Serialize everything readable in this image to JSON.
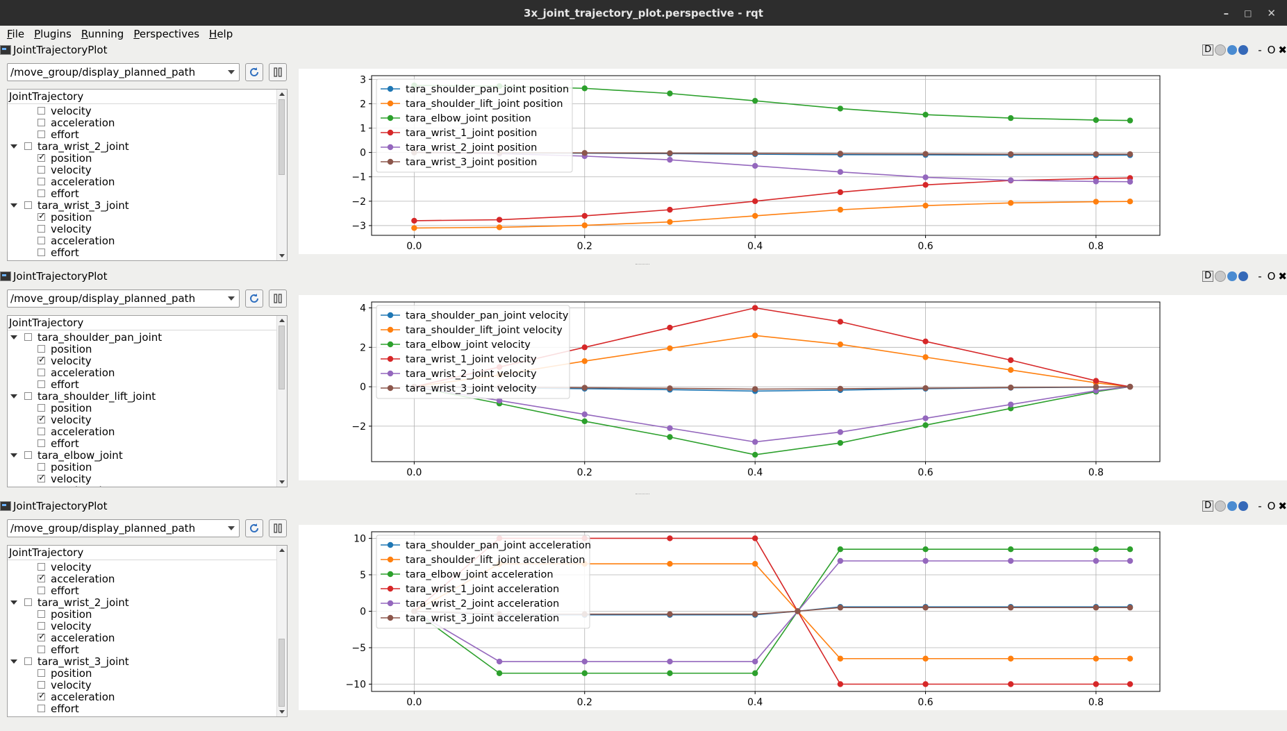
{
  "window": {
    "title": "3x_joint_trajectory_plot.perspective - rqt",
    "controls": [
      "–",
      "□",
      "✕"
    ]
  },
  "menu": [
    "File",
    "Plugins",
    "Running",
    "Perspectives",
    "Help"
  ],
  "dock_controls": {
    "d": "D",
    "minimize": "-",
    "float": "O",
    "close": "✖"
  },
  "colors": {
    "shoulder_pan": "#1f77b4",
    "shoulder_lift": "#ff7f0e",
    "elbow": "#2ca02c",
    "wrist_1": "#d62728",
    "wrist_2": "#9467bd",
    "wrist_3": "#8c564b"
  },
  "panels": [
    {
      "title": "JointTrajectoryPlot",
      "topic": "/move_group/display_planned_path",
      "tree_header": "JointTrajectory",
      "tree_rows": [
        {
          "label": "velocity",
          "type": "child",
          "checked": false
        },
        {
          "label": "acceleration",
          "type": "child",
          "checked": false
        },
        {
          "label": "effort",
          "type": "child",
          "checked": false
        },
        {
          "label": "tara_wrist_2_joint",
          "type": "parent",
          "checked": false
        },
        {
          "label": "position",
          "type": "child",
          "checked": true
        },
        {
          "label": "velocity",
          "type": "child",
          "checked": false
        },
        {
          "label": "acceleration",
          "type": "child",
          "checked": false
        },
        {
          "label": "effort",
          "type": "child",
          "checked": false
        },
        {
          "label": "tara_wrist_3_joint",
          "type": "parent",
          "checked": false
        },
        {
          "label": "position",
          "type": "child",
          "checked": true
        },
        {
          "label": "velocity",
          "type": "child",
          "checked": false
        },
        {
          "label": "acceleration",
          "type": "child",
          "checked": false
        },
        {
          "label": "effort",
          "type": "child",
          "checked": false
        }
      ],
      "scroll_thumb": [
        0.0,
        0.5
      ]
    },
    {
      "title": "JointTrajectoryPlot",
      "topic": "/move_group/display_planned_path",
      "tree_header": "JointTrajectory",
      "tree_rows": [
        {
          "label": "tara_shoulder_pan_joint",
          "type": "parent",
          "checked": false
        },
        {
          "label": "position",
          "type": "child",
          "checked": false
        },
        {
          "label": "velocity",
          "type": "child",
          "checked": true
        },
        {
          "label": "acceleration",
          "type": "child",
          "checked": false
        },
        {
          "label": "effort",
          "type": "child",
          "checked": false
        },
        {
          "label": "tara_shoulder_lift_joint",
          "type": "parent",
          "checked": false
        },
        {
          "label": "position",
          "type": "child",
          "checked": false
        },
        {
          "label": "velocity",
          "type": "child",
          "checked": true
        },
        {
          "label": "acceleration",
          "type": "child",
          "checked": false
        },
        {
          "label": "effort",
          "type": "child",
          "checked": false
        },
        {
          "label": "tara_elbow_joint",
          "type": "parent",
          "checked": false
        },
        {
          "label": "position",
          "type": "child",
          "checked": false
        },
        {
          "label": "velocity",
          "type": "child",
          "checked": true
        },
        {
          "label": "acceleration",
          "type": "child",
          "checked": false
        }
      ],
      "scroll_thumb": [
        0.0,
        0.42
      ]
    },
    {
      "title": "JointTrajectoryPlot",
      "topic": "/move_group/display_planned_path",
      "tree_header": "JointTrajectory",
      "tree_rows": [
        {
          "label": "velocity",
          "type": "child",
          "checked": false
        },
        {
          "label": "acceleration",
          "type": "child",
          "checked": true
        },
        {
          "label": "effort",
          "type": "child",
          "checked": false
        },
        {
          "label": "tara_wrist_2_joint",
          "type": "parent",
          "checked": false
        },
        {
          "label": "position",
          "type": "child",
          "checked": false
        },
        {
          "label": "velocity",
          "type": "child",
          "checked": false
        },
        {
          "label": "acceleration",
          "type": "child",
          "checked": true
        },
        {
          "label": "effort",
          "type": "child",
          "checked": false
        },
        {
          "label": "tara_wrist_3_joint",
          "type": "parent",
          "checked": false
        },
        {
          "label": "position",
          "type": "child",
          "checked": false
        },
        {
          "label": "velocity",
          "type": "child",
          "checked": false
        },
        {
          "label": "acceleration",
          "type": "child",
          "checked": true
        },
        {
          "label": "effort",
          "type": "child",
          "checked": false
        }
      ],
      "scroll_thumb": [
        0.55,
        1.0
      ]
    }
  ],
  "chart_data": [
    {
      "type": "line",
      "x": [
        0.0,
        0.1,
        0.2,
        0.3,
        0.4,
        0.5,
        0.6,
        0.7,
        0.8,
        0.84
      ],
      "xlim": [
        -0.05,
        0.875
      ],
      "ylim": [
        -3.4,
        3.15
      ],
      "xticks": [
        0.0,
        0.2,
        0.4,
        0.6,
        0.8
      ],
      "yticks": [
        3,
        2,
        1,
        0,
        -1,
        -2,
        -3
      ],
      "grid": true,
      "legend_position": "top-left",
      "series": [
        {
          "name": "tara_shoulder_pan_joint position",
          "color": "#1f77b4",
          "values": [
            0.0,
            -0.02,
            -0.03,
            -0.05,
            -0.07,
            -0.09,
            -0.1,
            -0.11,
            -0.11,
            -0.11
          ]
        },
        {
          "name": "tara_shoulder_lift_joint position",
          "color": "#ff7f0e",
          "values": [
            -3.1,
            -3.07,
            -2.99,
            -2.85,
            -2.6,
            -2.35,
            -2.18,
            -2.07,
            -2.02,
            -2.01
          ]
        },
        {
          "name": "tara_elbow_joint position",
          "color": "#2ca02c",
          "values": [
            2.75,
            2.72,
            2.63,
            2.42,
            2.12,
            1.8,
            1.55,
            1.41,
            1.33,
            1.31
          ]
        },
        {
          "name": "tara_wrist_1_joint position",
          "color": "#d62728",
          "values": [
            -2.8,
            -2.76,
            -2.6,
            -2.35,
            -2.0,
            -1.63,
            -1.33,
            -1.15,
            -1.07,
            -1.05
          ]
        },
        {
          "name": "tara_wrist_2_joint position",
          "color": "#9467bd",
          "values": [
            0.0,
            -0.05,
            -0.15,
            -0.3,
            -0.55,
            -0.8,
            -1.02,
            -1.14,
            -1.19,
            -1.2
          ]
        },
        {
          "name": "tara_wrist_3_joint position",
          "color": "#8c564b",
          "values": [
            0.0,
            -0.01,
            -0.02,
            -0.03,
            -0.04,
            -0.05,
            -0.06,
            -0.07,
            -0.07,
            -0.07
          ]
        }
      ]
    },
    {
      "type": "line",
      "x": [
        0.0,
        0.1,
        0.2,
        0.3,
        0.4,
        0.5,
        0.6,
        0.7,
        0.8,
        0.84
      ],
      "xlim": [
        -0.05,
        0.875
      ],
      "ylim": [
        -3.8,
        4.3
      ],
      "xticks": [
        0.0,
        0.2,
        0.4,
        0.6,
        0.8
      ],
      "yticks": [
        4,
        2,
        0,
        -2
      ],
      "grid": true,
      "legend_position": "top-left",
      "series": [
        {
          "name": "tara_shoulder_pan_joint velocity",
          "color": "#1f77b4",
          "values": [
            0.0,
            -0.05,
            -0.1,
            -0.15,
            -0.22,
            -0.17,
            -0.1,
            -0.05,
            -0.02,
            0.0
          ]
        },
        {
          "name": "tara_shoulder_lift_joint velocity",
          "color": "#ff7f0e",
          "values": [
            0.0,
            0.6,
            1.3,
            1.95,
            2.6,
            2.15,
            1.5,
            0.85,
            0.2,
            0.0
          ]
        },
        {
          "name": "tara_elbow_joint velocity",
          "color": "#2ca02c",
          "values": [
            0.0,
            -0.85,
            -1.75,
            -2.55,
            -3.45,
            -2.85,
            -1.95,
            -1.1,
            -0.25,
            0.0
          ]
        },
        {
          "name": "tara_wrist_1_joint velocity",
          "color": "#d62728",
          "values": [
            0.0,
            1.0,
            2.0,
            3.0,
            4.0,
            3.3,
            2.3,
            1.35,
            0.3,
            0.0
          ]
        },
        {
          "name": "tara_wrist_2_joint velocity",
          "color": "#9467bd",
          "values": [
            0.0,
            -0.7,
            -1.4,
            -2.1,
            -2.8,
            -2.3,
            -1.6,
            -0.9,
            -0.2,
            0.0
          ]
        },
        {
          "name": "tara_wrist_3_joint velocity",
          "color": "#8c564b",
          "values": [
            0.0,
            -0.02,
            -0.05,
            -0.08,
            -0.12,
            -0.1,
            -0.07,
            -0.04,
            -0.01,
            0.0
          ]
        }
      ]
    },
    {
      "type": "line",
      "x": [
        0.0,
        0.1,
        0.2,
        0.3,
        0.4,
        0.45,
        0.5,
        0.6,
        0.7,
        0.8,
        0.84
      ],
      "xlim": [
        -0.05,
        0.875
      ],
      "ylim": [
        -11,
        10.9
      ],
      "xticks": [
        0.0,
        0.2,
        0.4,
        0.6,
        0.8
      ],
      "yticks": [
        10,
        5,
        0,
        -5,
        -10
      ],
      "grid": true,
      "legend_position": "top-left",
      "series": [
        {
          "name": "tara_shoulder_pan_joint acceleration",
          "color": "#1f77b4",
          "values": [
            0.0,
            -0.5,
            -0.5,
            -0.5,
            -0.5,
            0.0,
            0.6,
            0.6,
            0.6,
            0.6,
            0.6
          ]
        },
        {
          "name": "tara_shoulder_lift_joint acceleration",
          "color": "#ff7f0e",
          "values": [
            0.0,
            6.5,
            6.5,
            6.5,
            6.5,
            0.0,
            -6.5,
            -6.5,
            -6.5,
            -6.5,
            -6.5
          ]
        },
        {
          "name": "tara_elbow_joint acceleration",
          "color": "#2ca02c",
          "values": [
            0.0,
            -8.5,
            -8.5,
            -8.5,
            -8.5,
            0.0,
            8.5,
            8.5,
            8.5,
            8.5,
            8.5
          ]
        },
        {
          "name": "tara_wrist_1_joint acceleration",
          "color": "#d62728",
          "values": [
            0.0,
            10.0,
            10.0,
            10.0,
            10.0,
            0.0,
            -10.0,
            -10.0,
            -10.0,
            -10.0,
            -10.0
          ]
        },
        {
          "name": "tara_wrist_2_joint acceleration",
          "color": "#9467bd",
          "values": [
            0.0,
            -6.9,
            -6.9,
            -6.9,
            -6.9,
            0.0,
            6.9,
            6.9,
            6.9,
            6.9,
            6.9
          ]
        },
        {
          "name": "tara_wrist_3_joint acceleration",
          "color": "#8c564b",
          "values": [
            0.0,
            -0.4,
            -0.4,
            -0.4,
            -0.4,
            0.0,
            0.5,
            0.5,
            0.5,
            0.5,
            0.5
          ]
        }
      ]
    }
  ]
}
